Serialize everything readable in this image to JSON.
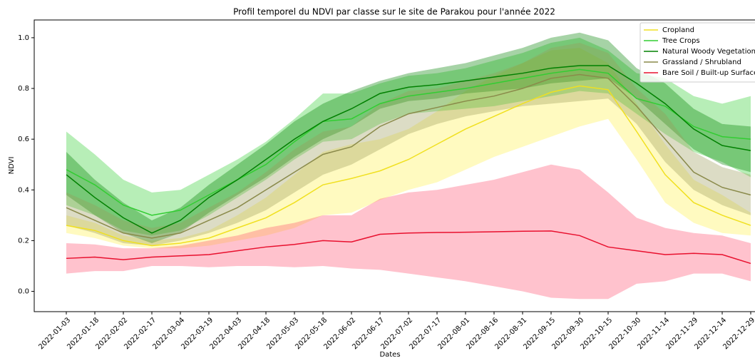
{
  "chart_data": {
    "type": "line",
    "title": "Profil temporel du NDVI par classe sur le site de Parakou pour l'année 2022",
    "x_label": "Dates",
    "y_label": "NDVI",
    "categories": [
      "2022-01-03",
      "2022-01-18",
      "2022-02-02",
      "2022-02-17",
      "2022-03-04",
      "2022-03-19",
      "2022-04-03",
      "2022-04-18",
      "2022-05-03",
      "2022-05-18",
      "2022-06-02",
      "2022-06-17",
      "2022-07-02",
      "2022-07-17",
      "2022-08-01",
      "2022-08-16",
      "2022-08-31",
      "2022-09-15",
      "2022-09-30",
      "2022-10-15",
      "2022-10-30",
      "2022-11-14",
      "2022-11-29",
      "2022-12-14",
      "2022-12-29"
    ],
    "ylim": [
      -0.08,
      1.07
    ],
    "yticks": [
      {
        "value": 0,
        "label": "0.0"
      },
      0.2,
      0.4,
      0.6,
      0.8,
      {
        "value": 1,
        "label": "1.0"
      }
    ],
    "legend": "upper right",
    "series": [
      {
        "name": "Cropland",
        "color": "#f0e020",
        "band_color": "#fff04a",
        "values": [
          0.26,
          0.24,
          0.2,
          0.18,
          0.19,
          0.21,
          0.25,
          0.29,
          0.35,
          0.42,
          0.445,
          0.475,
          0.52,
          0.58,
          0.64,
          0.69,
          0.74,
          0.785,
          0.81,
          0.795,
          0.63,
          0.46,
          0.35,
          0.3,
          0.26
        ],
        "lower": [
          0.23,
          0.21,
          0.18,
          0.17,
          0.17,
          0.18,
          0.2,
          0.22,
          0.25,
          0.3,
          0.31,
          0.36,
          0.4,
          0.43,
          0.48,
          0.53,
          0.57,
          0.61,
          0.65,
          0.68,
          0.52,
          0.35,
          0.27,
          0.23,
          0.22
        ],
        "upper": [
          0.3,
          0.27,
          0.22,
          0.2,
          0.21,
          0.24,
          0.3,
          0.37,
          0.46,
          0.55,
          0.58,
          0.6,
          0.64,
          0.71,
          0.79,
          0.85,
          0.9,
          0.95,
          0.96,
          0.9,
          0.74,
          0.58,
          0.44,
          0.38,
          0.31
        ]
      },
      {
        "name": "Tree Crops",
        "color": "#32cd32",
        "band_color": "#32cd32",
        "values": [
          0.48,
          0.42,
          0.34,
          0.3,
          0.32,
          0.38,
          0.44,
          0.5,
          0.59,
          0.67,
          0.68,
          0.74,
          0.77,
          0.785,
          0.8,
          0.82,
          0.84,
          0.86,
          0.875,
          0.86,
          0.76,
          0.73,
          0.65,
          0.61,
          0.6
        ],
        "lower": [
          0.34,
          0.3,
          0.24,
          0.22,
          0.24,
          0.3,
          0.37,
          0.44,
          0.52,
          0.59,
          0.6,
          0.66,
          0.7,
          0.71,
          0.72,
          0.73,
          0.75,
          0.77,
          0.79,
          0.78,
          0.7,
          0.62,
          0.55,
          0.51,
          0.45
        ],
        "upper": [
          0.63,
          0.54,
          0.44,
          0.39,
          0.4,
          0.46,
          0.52,
          0.59,
          0.68,
          0.78,
          0.78,
          0.82,
          0.85,
          0.86,
          0.88,
          0.91,
          0.94,
          0.98,
          1.0,
          0.95,
          0.86,
          0.84,
          0.77,
          0.74,
          0.77
        ]
      },
      {
        "name": "Natural Woody Vegetation",
        "color": "#008000",
        "band_color": "#008000",
        "values": [
          0.46,
          0.37,
          0.29,
          0.23,
          0.28,
          0.37,
          0.44,
          0.52,
          0.6,
          0.67,
          0.72,
          0.78,
          0.805,
          0.815,
          0.83,
          0.845,
          0.86,
          0.88,
          0.89,
          0.89,
          0.82,
          0.74,
          0.64,
          0.575,
          0.555
        ],
        "lower": [
          0.38,
          0.3,
          0.23,
          0.19,
          0.23,
          0.31,
          0.38,
          0.45,
          0.53,
          0.6,
          0.65,
          0.72,
          0.75,
          0.76,
          0.78,
          0.79,
          0.8,
          0.82,
          0.83,
          0.84,
          0.76,
          0.66,
          0.56,
          0.5,
          0.47
        ],
        "upper": [
          0.55,
          0.44,
          0.35,
          0.28,
          0.33,
          0.42,
          0.5,
          0.58,
          0.67,
          0.74,
          0.79,
          0.83,
          0.86,
          0.88,
          0.9,
          0.93,
          0.96,
          1.0,
          1.02,
          0.99,
          0.88,
          0.82,
          0.72,
          0.66,
          0.65
        ]
      },
      {
        "name": "Grassland / Shrubland",
        "color": "#8a8a4a",
        "band_color": "#9a9a5a",
        "values": [
          0.33,
          0.28,
          0.23,
          0.21,
          0.23,
          0.28,
          0.33,
          0.4,
          0.47,
          0.54,
          0.57,
          0.65,
          0.7,
          0.725,
          0.75,
          0.77,
          0.8,
          0.84,
          0.855,
          0.84,
          0.73,
          0.6,
          0.47,
          0.41,
          0.38
        ],
        "lower": [
          0.26,
          0.23,
          0.19,
          0.18,
          0.2,
          0.23,
          0.27,
          0.32,
          0.39,
          0.46,
          0.5,
          0.56,
          0.62,
          0.66,
          0.69,
          0.71,
          0.73,
          0.74,
          0.75,
          0.76,
          0.66,
          0.51,
          0.4,
          0.34,
          0.3
        ],
        "upper": [
          0.39,
          0.34,
          0.28,
          0.25,
          0.27,
          0.33,
          0.39,
          0.47,
          0.56,
          0.63,
          0.65,
          0.74,
          0.79,
          0.8,
          0.83,
          0.86,
          0.9,
          0.96,
          0.98,
          0.94,
          0.8,
          0.7,
          0.55,
          0.49,
          0.46
        ]
      },
      {
        "name": "Bare Soil / Built-up Surface",
        "color": "#e8102e",
        "band_color": "#ff5070",
        "values": [
          0.13,
          0.135,
          0.125,
          0.135,
          0.14,
          0.145,
          0.16,
          0.175,
          0.185,
          0.2,
          0.195,
          0.225,
          0.23,
          0.232,
          0.233,
          0.235,
          0.237,
          0.238,
          0.22,
          0.175,
          0.16,
          0.145,
          0.15,
          0.145,
          0.11
        ],
        "lower": [
          0.07,
          0.08,
          0.08,
          0.1,
          0.1,
          0.095,
          0.1,
          0.1,
          0.095,
          0.1,
          0.09,
          0.085,
          0.07,
          0.055,
          0.04,
          0.02,
          0.0,
          -0.025,
          -0.03,
          -0.03,
          0.03,
          0.04,
          0.07,
          0.07,
          0.04
        ],
        "upper": [
          0.19,
          0.185,
          0.17,
          0.17,
          0.18,
          0.2,
          0.22,
          0.25,
          0.27,
          0.3,
          0.3,
          0.365,
          0.39,
          0.4,
          0.42,
          0.44,
          0.47,
          0.5,
          0.48,
          0.39,
          0.29,
          0.25,
          0.23,
          0.22,
          0.19
        ]
      }
    ]
  }
}
